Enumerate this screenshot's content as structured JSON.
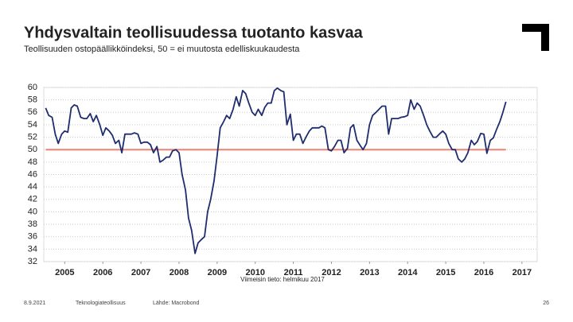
{
  "title": "Yhdysvaltain teollisuudessa tuotanto kasvaa",
  "subtitle": "Teollisuuden ostopäällikköindeksi, 50 = ei muutosta edelliskuukaudesta",
  "footer": {
    "date": "8.9.2021",
    "organization": "Teknologiateollisuus",
    "source": "Lähde: Macrobond",
    "page": "26"
  },
  "chart_data": {
    "type": "line",
    "note": "Viimeisin tieto: helmikuu 2017",
    "x": [
      2005,
      2005.08,
      2005.17,
      2005.25,
      2005.33,
      2005.42,
      2005.5,
      2005.58,
      2005.67,
      2005.75,
      2005.83,
      2005.92,
      2006,
      2006.08,
      2006.17,
      2006.25,
      2006.33,
      2006.42,
      2006.5,
      2006.58,
      2006.67,
      2006.75,
      2006.83,
      2006.92,
      2007,
      2007.08,
      2007.17,
      2007.25,
      2007.33,
      2007.42,
      2007.5,
      2007.58,
      2007.67,
      2007.75,
      2007.83,
      2007.92,
      2008,
      2008.08,
      2008.17,
      2008.25,
      2008.33,
      2008.42,
      2008.5,
      2008.58,
      2008.67,
      2008.75,
      2008.83,
      2008.92,
      2009,
      2009.08,
      2009.17,
      2009.25,
      2009.33,
      2009.42,
      2009.5,
      2009.58,
      2009.67,
      2009.75,
      2009.83,
      2009.92,
      2010,
      2010.08,
      2010.17,
      2010.25,
      2010.33,
      2010.42,
      2010.5,
      2010.58,
      2010.67,
      2010.75,
      2010.83,
      2010.92,
      2011,
      2011.08,
      2011.17,
      2011.25,
      2011.33,
      2011.42,
      2011.5,
      2011.58,
      2011.67,
      2011.75,
      2011.83,
      2011.92,
      2012,
      2012.08,
      2012.17,
      2012.25,
      2012.33,
      2012.42,
      2012.5,
      2012.58,
      2012.67,
      2012.75,
      2012.83,
      2012.92,
      2013,
      2013.08,
      2013.17,
      2013.25,
      2013.33,
      2013.42,
      2013.5,
      2013.58,
      2013.67,
      2013.75,
      2013.83,
      2013.92,
      2014,
      2014.08,
      2014.17,
      2014.25,
      2014.33,
      2014.42,
      2014.5,
      2014.58,
      2014.67,
      2014.75,
      2014.83,
      2014.92,
      2015,
      2015.08,
      2015.17,
      2015.25,
      2015.33,
      2015.42,
      2015.5,
      2015.58,
      2015.67,
      2015.75,
      2015.83,
      2015.92,
      2016,
      2016.08,
      2016.17,
      2016.25,
      2016.33,
      2016.42,
      2016.5,
      2016.58,
      2016.67,
      2016.75,
      2016.83,
      2016.92,
      2017,
      2017.08
    ],
    "series": [
      {
        "color": "#1f2d6e",
        "values": [
          56.7,
          55.5,
          55.2,
          52.5,
          51,
          52.5,
          53,
          52.8,
          56.7,
          57.2,
          57,
          55.2,
          55,
          55,
          55.8,
          54.5,
          55.5,
          54,
          52.3,
          53.5,
          53,
          52.3,
          51,
          51.5,
          49.5,
          52.5,
          52.5,
          52.5,
          52.7,
          52.5,
          51,
          51.2,
          51.2,
          50.8,
          49.5,
          50.5,
          48,
          48.3,
          48.8,
          48.8,
          49.8,
          50,
          49.5,
          46,
          43.5,
          39,
          37,
          33.3,
          35,
          35.5,
          36,
          40,
          42,
          45,
          49,
          53.5,
          54.5,
          55.5,
          55,
          56.5,
          58.5,
          57,
          59.5,
          59,
          57.5,
          56,
          55.5,
          56.5,
          55.5,
          56.8,
          57.5,
          57.5,
          59.5,
          59.9,
          59.5,
          59.3,
          54,
          55.7,
          51.5,
          52.5,
          52.5,
          51,
          52,
          53,
          53.5,
          53.5,
          53.5,
          53.8,
          53.5,
          50,
          49.8,
          50.5,
          51.5,
          51.5,
          49.5,
          50.2,
          53.5,
          54,
          51.5,
          50.7,
          50,
          51,
          54,
          55.5,
          56,
          56.5,
          57,
          57,
          52.5,
          55,
          55,
          55,
          55.2,
          55.3,
          55.5,
          58,
          56.5,
          57.5,
          57,
          55.5,
          54,
          53,
          52,
          52,
          52.5,
          53,
          52.5,
          51,
          50,
          50,
          48.5,
          48,
          48.5,
          49.5,
          51.5,
          50.8,
          51.3,
          52.6,
          52.5,
          49.4,
          51.5,
          51.9,
          53.2,
          54.5,
          56,
          57.7
        ]
      }
    ],
    "reference_line": {
      "value": 50,
      "color": "#f08070"
    },
    "xlim": [
      2004.95,
      2017.9
    ],
    "xticks": [
      {
        "value": 2005.5,
        "label": "2005"
      },
      {
        "value": 2006.5,
        "label": "2006"
      },
      {
        "value": 2007.5,
        "label": "2007"
      },
      {
        "value": 2008.5,
        "label": "2008"
      },
      {
        "value": 2009.5,
        "label": "2009"
      },
      {
        "value": 2010.5,
        "label": "2010"
      },
      {
        "value": 2011.5,
        "label": "2011"
      },
      {
        "value": 2012.5,
        "label": "2012"
      },
      {
        "value": 2013.5,
        "label": "2013"
      },
      {
        "value": 2014.5,
        "label": "2014"
      },
      {
        "value": 2015.5,
        "label": "2015"
      },
      {
        "value": 2016.5,
        "label": "2016"
      },
      {
        "value": 2017.5,
        "label": "2017"
      }
    ],
    "ylim": [
      32,
      60
    ],
    "yticks": [
      32,
      34,
      36,
      38,
      40,
      42,
      44,
      46,
      48,
      50,
      52,
      54,
      56,
      58,
      60
    ],
    "grid": true
  }
}
